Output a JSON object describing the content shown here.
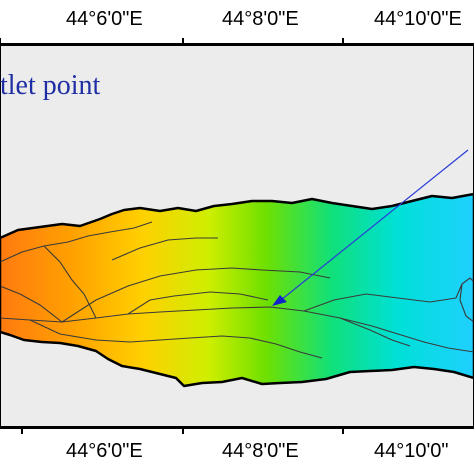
{
  "map": {
    "top_ticks": [
      "44°6'0\"E",
      "44°8'0\"E",
      "44°10'0\"E"
    ],
    "bottom_ticks": [
      "44°6'0\"E",
      "44°8'0\"E",
      "44°10'0\""
    ],
    "outlet_label": "tlet point",
    "colors": {
      "background": "#ececec",
      "frame": "#000000",
      "outlet_label": "#1f2fa3",
      "leader_line": "#2a3bd8",
      "outlet_marker": "#1224c9",
      "streams": "#3a3a3a",
      "dem_ramp": [
        "#ff7a10",
        "#ffc000",
        "#d8ef00",
        "#7fe000",
        "#10e07a",
        "#00e0d8",
        "#1fd0ff"
      ]
    }
  }
}
